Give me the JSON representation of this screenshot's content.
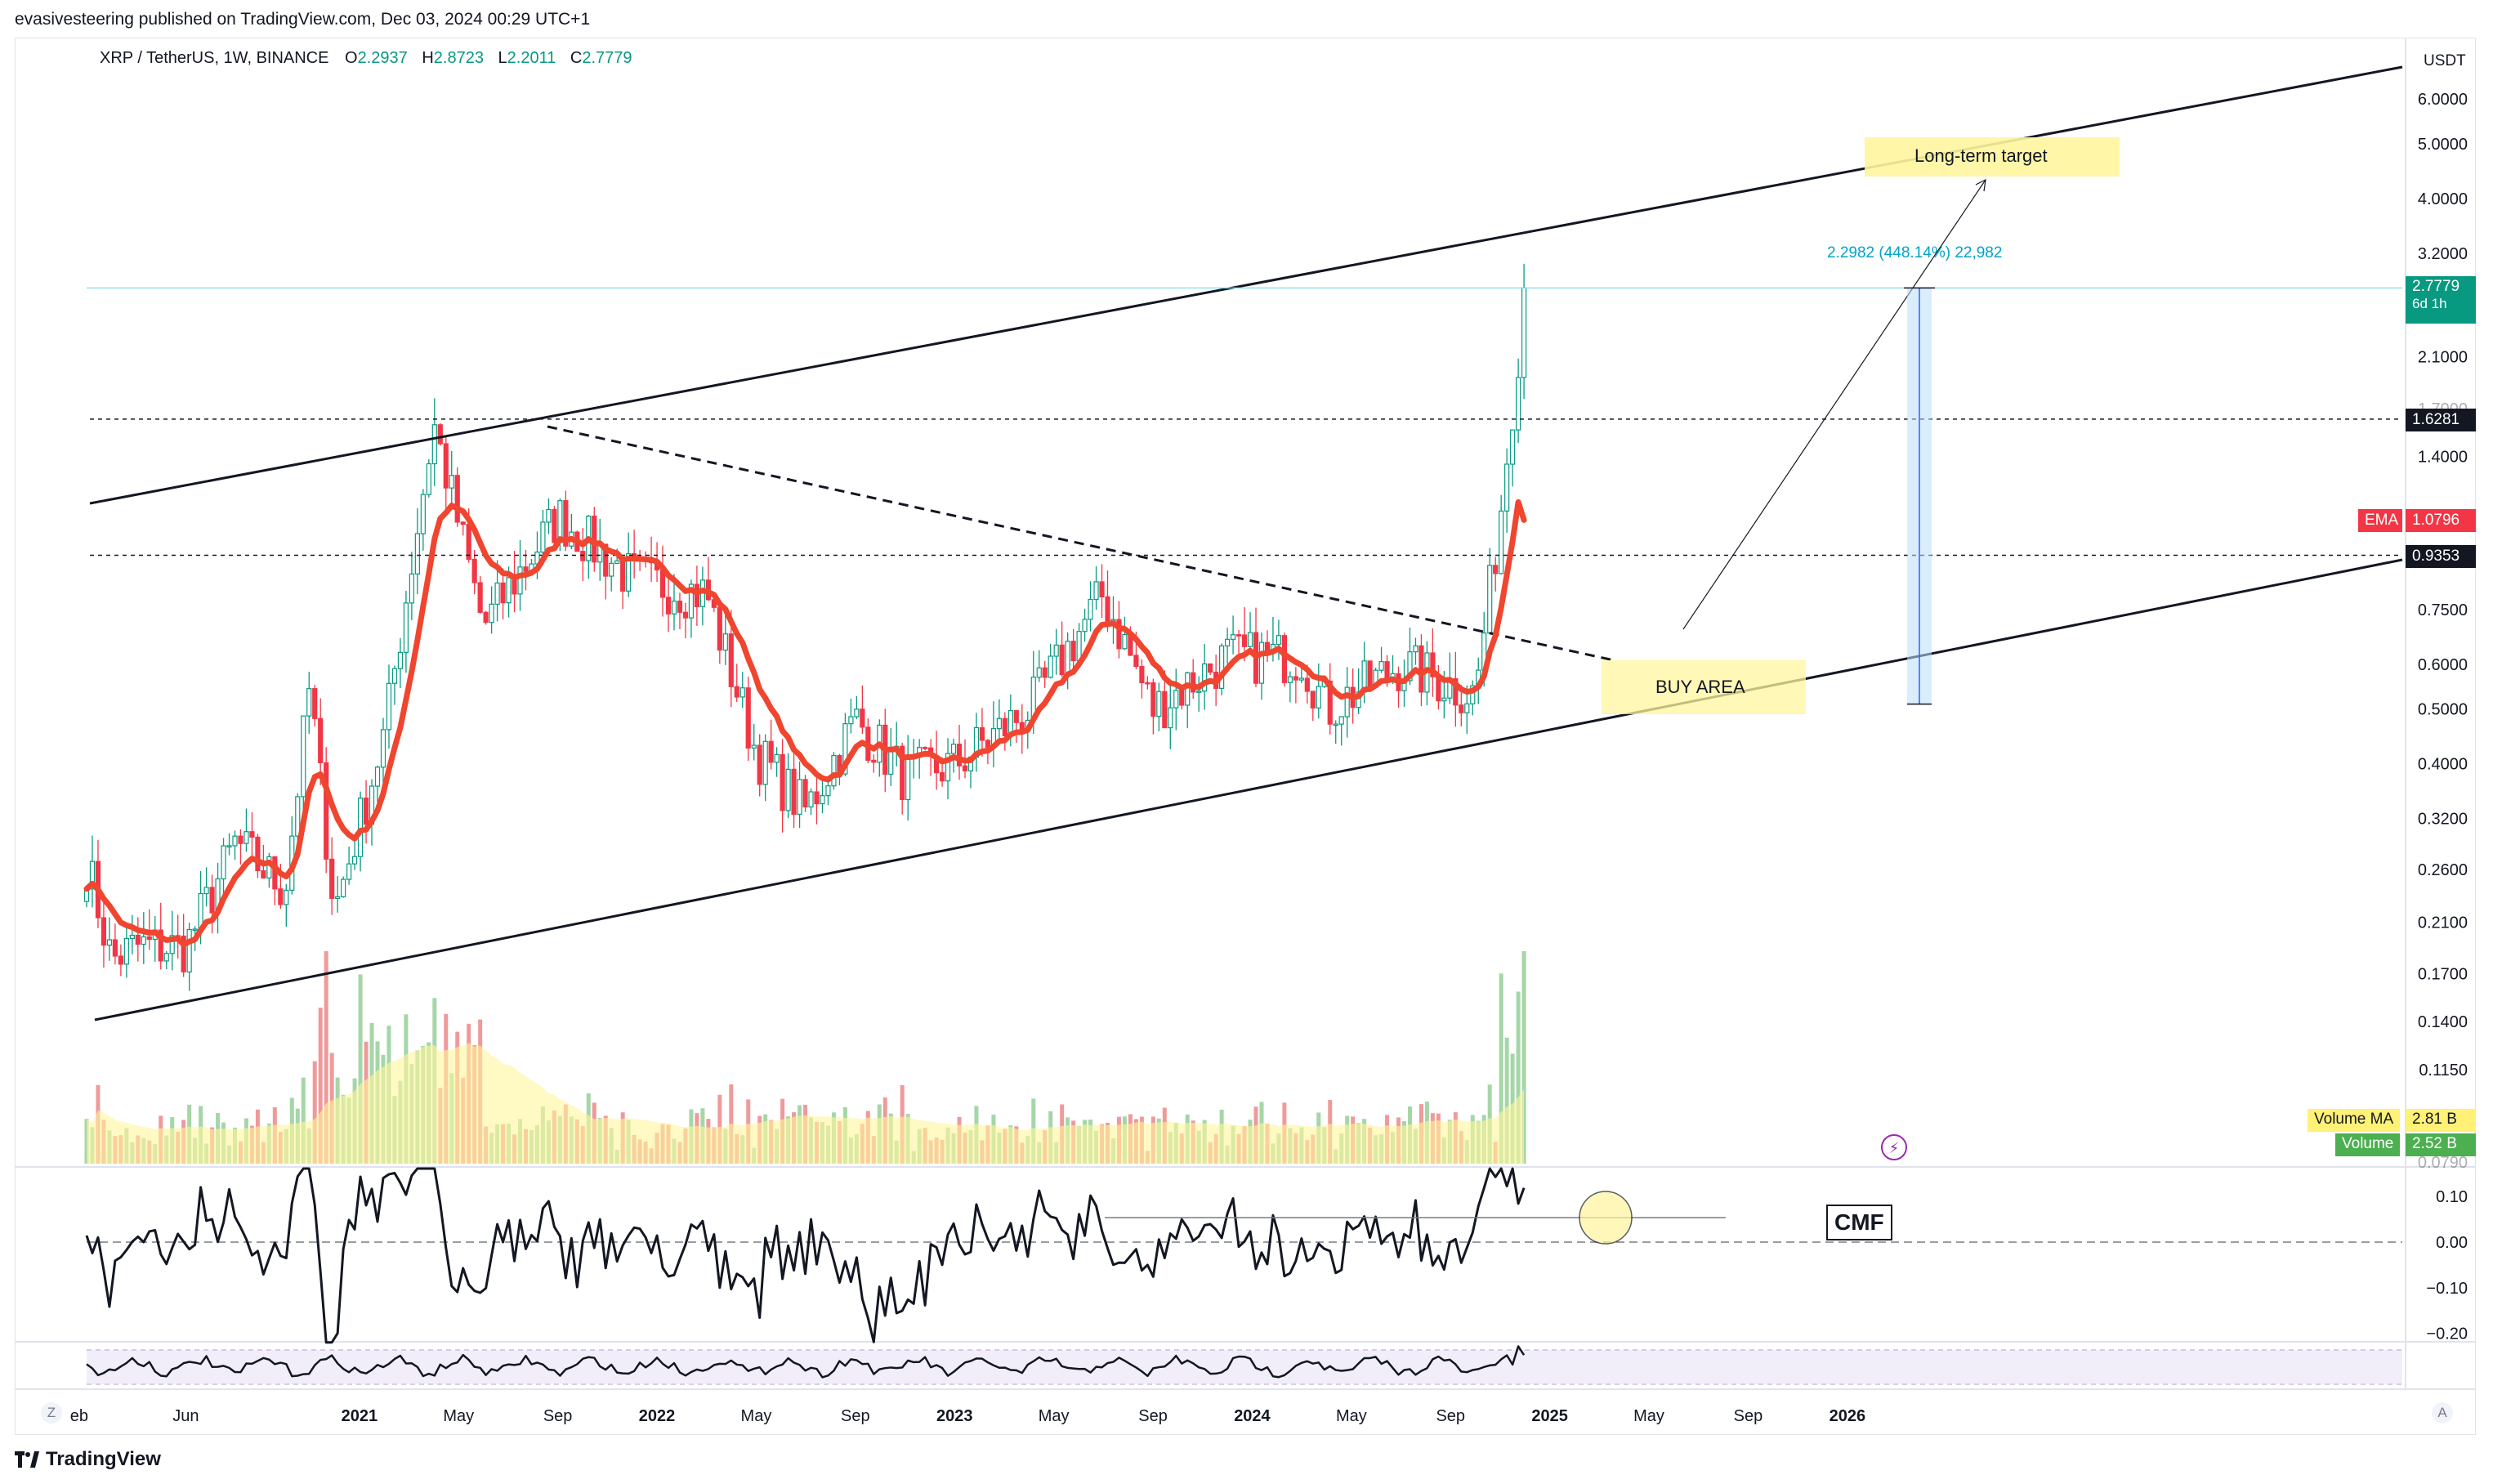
{
  "publish_line": "evasivesteering published on TradingView.com, Dec 03, 2024 00:29 UTC+1",
  "symbol": {
    "name": "XRP / TetherUS, 1W, BINANCE",
    "o_label": "O",
    "o": "2.2937",
    "h_label": "H",
    "h": "2.8723",
    "l_label": "L",
    "l": "2.2011",
    "c_label": "C",
    "c": "2.7779"
  },
  "currency": "USDT",
  "price_axis": {
    "ticks": [
      "6.0000",
      "5.0000",
      "4.0000",
      "3.2000",
      "2.1000",
      "1.4000",
      "0.7500",
      "0.6000",
      "0.5000",
      "0.4000",
      "0.3200",
      "0.2600",
      "0.2100",
      "0.1700",
      "0.1400",
      "0.1150"
    ],
    "partial_ticks": [
      "1.7000",
      "0.9500",
      "0.0790"
    ]
  },
  "price_tags": {
    "last_price": "2.7779",
    "countdown": "6d 1h",
    "level_high": "1.6281",
    "level_low": "0.9353",
    "ema_label": "EMA",
    "ema_value": "1.0796"
  },
  "volume_tags": {
    "ma_label": "Volume MA",
    "ma_value": "2.81 B",
    "vol_label": "Volume",
    "vol_value": "2.52 B"
  },
  "cmf_axis": {
    "ticks": [
      "0.10",
      "0.00",
      "−0.10",
      "−0.20"
    ]
  },
  "time_axis": {
    "labels": [
      "eb",
      "Jun",
      "2021",
      "May",
      "Sep",
      "2022",
      "May",
      "Sep",
      "2023",
      "May",
      "Sep",
      "2024",
      "May",
      "Sep",
      "2025",
      "May",
      "Sep",
      "2026"
    ],
    "year_labels": [
      "2021",
      "2022",
      "2023",
      "2024",
      "2025",
      "2026"
    ]
  },
  "annotations": {
    "long_term_target": "Long-term target",
    "buy_area": "BUY AREA",
    "measure": "2.2982 (448.14%) 22,982",
    "cmf": "CMF"
  },
  "corners": {
    "left": "Z",
    "right": "A"
  },
  "footer": "TradingView",
  "colors": {
    "up": "#089981",
    "down": "#f23645",
    "ema": "#f0452f",
    "vol_up": "#a5d6a7",
    "vol_down": "#ef9a9a",
    "vol_ma": "#fff59d",
    "annotation_bg": "#fff59d",
    "measure": "#00a3c8",
    "last_price_tag": "#089981"
  },
  "chart_data": {
    "type": "candlestick",
    "timeframe": "1W",
    "y_scale": "log",
    "ylim": [
      0.079,
      6.0
    ],
    "x_range": [
      "2020-02",
      "2026-03"
    ],
    "key_price_path": [
      {
        "date": "2020-02",
        "close": 0.27
      },
      {
        "date": "2020-03",
        "close": 0.18
      },
      {
        "date": "2020-04",
        "close": 0.19
      },
      {
        "date": "2020-06",
        "close": 0.19
      },
      {
        "date": "2020-08",
        "close": 0.29
      },
      {
        "date": "2020-10",
        "close": 0.24
      },
      {
        "date": "2020-11",
        "close": 0.55
      },
      {
        "date": "2020-12",
        "close": 0.22
      },
      {
        "date": "2021-02",
        "close": 0.45
      },
      {
        "date": "2021-04",
        "close": 1.6
      },
      {
        "date": "2021-06",
        "close": 0.7
      },
      {
        "date": "2021-09",
        "close": 1.1
      },
      {
        "date": "2021-12",
        "close": 0.85
      },
      {
        "date": "2022-03",
        "close": 0.8
      },
      {
        "date": "2022-05",
        "close": 0.42
      },
      {
        "date": "2022-07",
        "close": 0.33
      },
      {
        "date": "2022-09",
        "close": 0.48
      },
      {
        "date": "2022-11",
        "close": 0.38
      },
      {
        "date": "2023-01",
        "close": 0.4
      },
      {
        "date": "2023-04",
        "close": 0.5
      },
      {
        "date": "2023-07",
        "close": 0.8
      },
      {
        "date": "2023-09",
        "close": 0.5
      },
      {
        "date": "2023-12",
        "close": 0.62
      },
      {
        "date": "2024-03",
        "close": 0.62
      },
      {
        "date": "2024-04",
        "close": 0.5
      },
      {
        "date": "2024-07",
        "close": 0.6
      },
      {
        "date": "2024-10",
        "close": 0.53
      },
      {
        "date": "2024-11",
        "close": 1.1
      },
      {
        "date": "2024-12",
        "close": 2.78
      }
    ],
    "ema_last": 1.0796,
    "horizontal_levels": [
      1.6281,
      0.9353
    ],
    "cmf_range": [
      -0.2,
      0.1
    ]
  }
}
